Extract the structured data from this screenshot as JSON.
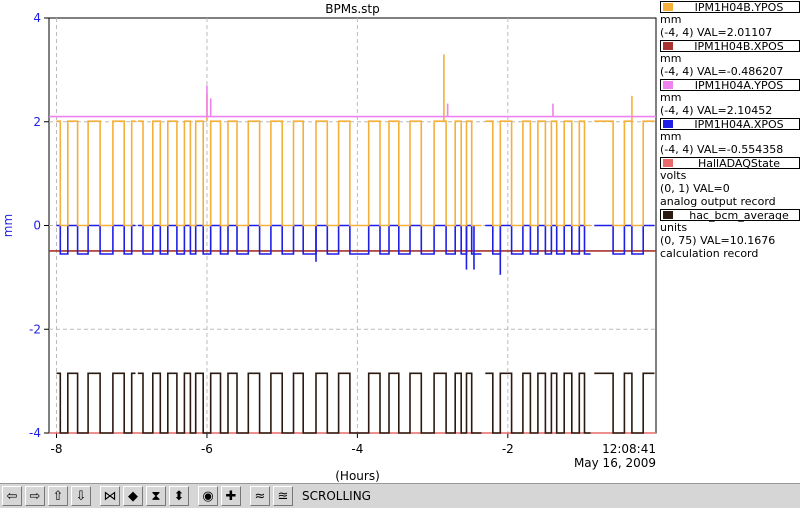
{
  "chart_data": {
    "type": "line",
    "title": "BPMs.stp",
    "xlabel": "(Hours)",
    "ylabel": "mm",
    "xlim": [
      -8.1,
      -0.03
    ],
    "ylim": [
      -4,
      4
    ],
    "x_ticks": [
      "-8",
      "-6",
      "-4",
      "-2"
    ],
    "y_ticks": [
      "4",
      "2",
      "0",
      "-2",
      "-4"
    ],
    "grid": true,
    "legend_position": "right",
    "time_label": {
      "time": "12:08:41",
      "date": "May 16, 2009"
    },
    "series": [
      {
        "name": "IPM1H04B.YPOS",
        "color": "#f5b03a",
        "units": "mm",
        "range": "(-4, 4)",
        "value_text": "VAL=2.01107",
        "extra": "",
        "levels": {
          "high": 2.01,
          "low": 0.0
        },
        "spikes": [
          {
            "x": -6.0,
            "y": 2.55
          },
          {
            "x": -2.85,
            "y": 3.3
          },
          {
            "x": -0.35,
            "y": 2.5
          }
        ]
      },
      {
        "name": "IPM1H04B.XPOS",
        "color": "#a8322d",
        "units": "mm",
        "range": "(-4, 4)",
        "value_text": "VAL=-0.486207",
        "extra": "",
        "levels": {
          "high": -0.49,
          "low": -0.49
        }
      },
      {
        "name": "IPM1H04A.YPOS",
        "color": "#ee82ee",
        "units": "mm",
        "range": "(-4, 4)",
        "value_text": "VAL=2.10452",
        "extra": "",
        "levels": {
          "high": 2.1,
          "low": 2.1
        },
        "spikes": [
          {
            "x": -6.0,
            "y": 2.7
          },
          {
            "x": -5.95,
            "y": 2.45
          },
          {
            "x": -2.8,
            "y": 2.35
          },
          {
            "x": -1.4,
            "y": 2.35
          }
        ]
      },
      {
        "name": "IPM1H04A.XPOS",
        "color": "#1e1ee6",
        "units": "mm",
        "range": "(-4, 4)",
        "value_text": "VAL=-0.554358",
        "extra": "",
        "levels": {
          "high": 0.0,
          "low": -0.55
        },
        "dips": [
          {
            "x": -4.55,
            "y": -0.7
          },
          {
            "x": -2.55,
            "y": -0.85
          },
          {
            "x": -2.45,
            "y": -0.85
          },
          {
            "x": -2.1,
            "y": -0.95
          }
        ]
      },
      {
        "name": "HallADAQState",
        "color": "#e86a6a",
        "units": "volts",
        "range": "(0, 1)",
        "value_text": "VAL=0",
        "extra": "analog output record",
        "levels": {
          "high": -4.0,
          "low": -4.0
        }
      },
      {
        "name": "hac_bcm_average",
        "color": "#2b1a12",
        "units": "units",
        "range": "(0, 75)",
        "value_text": "VAL=10.1676",
        "extra": "calculation record",
        "levels": {
          "high": -2.85,
          "low": -4.0
        }
      }
    ],
    "segments": [
      {
        "x0": -8.0,
        "x1": -6.95,
        "jumps": [
          -7.95,
          -7.85,
          -7.72,
          -7.58,
          -7.42,
          -7.25,
          -7.1,
          -7.0
        ]
      },
      {
        "x0": -6.92,
        "x1": -2.35,
        "jumps": [
          -6.85,
          -6.72,
          -6.62,
          -6.52,
          -6.4,
          -6.3,
          -6.22,
          -6.15,
          -6.05,
          -5.95,
          -5.82,
          -5.72,
          -5.6,
          -5.45,
          -5.3,
          -5.15,
          -5.0,
          -4.85,
          -4.72,
          -4.55,
          -4.4,
          -4.25,
          -4.1,
          -3.85,
          -3.7,
          -3.58,
          -3.45,
          -3.3,
          -3.15,
          -2.98,
          -2.82,
          -2.7,
          -2.62,
          -2.55,
          -2.48
        ]
      },
      {
        "x0": -2.3,
        "x1": -0.9,
        "jumps": [
          -2.2,
          -2.1,
          -1.95,
          -1.8,
          -1.7,
          -1.6,
          -1.5,
          -1.42,
          -1.35,
          -1.25,
          -1.15,
          -1.05,
          -0.98
        ]
      },
      {
        "x0": -0.85,
        "x1": -0.05,
        "jumps": [
          -0.6,
          -0.45,
          -0.35,
          -0.2
        ]
      }
    ]
  },
  "toolbar": {
    "buttons": [
      {
        "name": "scroll-left-button",
        "glyph": "⇦"
      },
      {
        "name": "scroll-right-button",
        "glyph": "⇨"
      },
      {
        "name": "scroll-up-button",
        "glyph": "⇧"
      },
      {
        "name": "scroll-down-button",
        "glyph": "⇩"
      },
      {
        "name": "zoom-in-x-button",
        "glyph": "⋈"
      },
      {
        "name": "zoom-out-x-button",
        "glyph": "◆"
      },
      {
        "name": "zoom-in-y-button",
        "glyph": "⧗"
      },
      {
        "name": "zoom-out-y-button",
        "glyph": "⬍"
      },
      {
        "name": "reset-button",
        "glyph": "◉"
      },
      {
        "name": "add-button",
        "glyph": "✚"
      },
      {
        "name": "scroll-mode-button",
        "glyph": "≈"
      },
      {
        "name": "stop-scroll-button",
        "glyph": "≊"
      }
    ],
    "status": "SCROLLING"
  }
}
